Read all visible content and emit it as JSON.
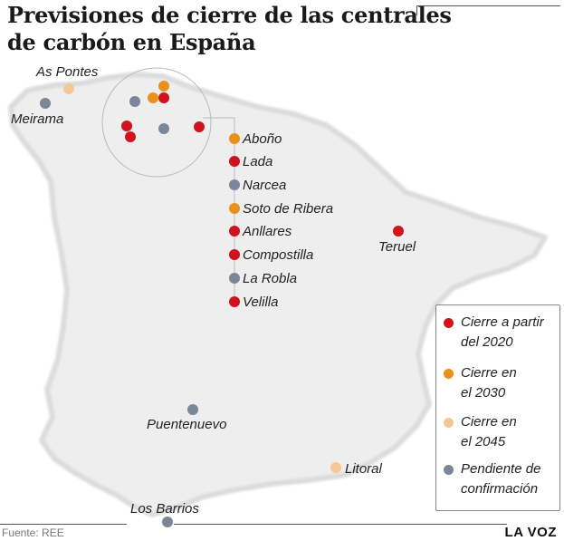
{
  "title": {
    "line1": "Previsiones de cierre de las centrales",
    "line2": "de carbón en España"
  },
  "colors": {
    "cierre_2020": "#d0121d",
    "cierre_2030": "#e8911a",
    "cierre_2045": "#f5c796",
    "pendiente": "#7a8799",
    "land": "#eeeeee",
    "land_edge": "#dcdcdc"
  },
  "plants": [
    {
      "name": "As Pontes",
      "status": "cierre_2045"
    },
    {
      "name": "Meirama",
      "status": "pendiente"
    },
    {
      "name": "Aboño",
      "status": "cierre_2030"
    },
    {
      "name": "Lada",
      "status": "cierre_2020"
    },
    {
      "name": "Narcea",
      "status": "pendiente"
    },
    {
      "name": "Soto de Ribera",
      "status": "cierre_2030"
    },
    {
      "name": "Anllares",
      "status": "cierre_2020"
    },
    {
      "name": "Compostilla",
      "status": "cierre_2020"
    },
    {
      "name": "La Robla",
      "status": "pendiente"
    },
    {
      "name": "Velilla",
      "status": "cierre_2020"
    },
    {
      "name": "Teruel",
      "status": "cierre_2020"
    },
    {
      "name": "Puentenuevo",
      "status": "pendiente"
    },
    {
      "name": "Litoral",
      "status": "cierre_2045"
    },
    {
      "name": "Los Barrios",
      "status": "pendiente"
    }
  ],
  "legend": [
    {
      "label": "Cierre a partir\ndel 2020",
      "status": "cierre_2020"
    },
    {
      "label": "Cierre en\nel 2030",
      "status": "cierre_2030"
    },
    {
      "label": "Cierre en\nel 2045",
      "status": "cierre_2045"
    },
    {
      "label": "Pendiente de\nconfirmación",
      "status": "pendiente"
    }
  ],
  "footer": {
    "source": "Fuente: REE",
    "brand": "LA VOZ"
  }
}
